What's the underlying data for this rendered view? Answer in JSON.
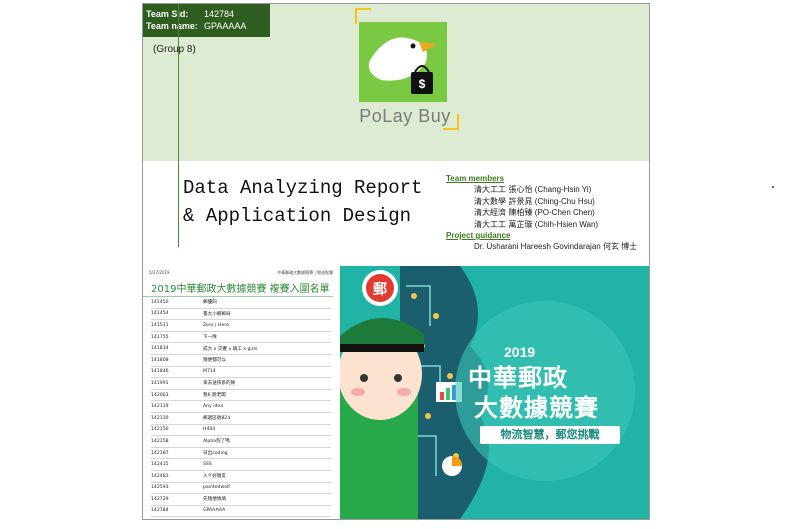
{
  "team": {
    "sid_label": "Team Sid:",
    "sid_value": "142784",
    "name_label": "Team name:",
    "name_value": "GPAAAAA",
    "group": "(Group 8)"
  },
  "brand": {
    "name": "PoLay Buy",
    "bag_symbol": "$"
  },
  "report": {
    "title_line1": "Data Analyzing Report",
    "title_line2": "& Application Design"
  },
  "members": {
    "heading": "Team members",
    "list": [
      {
        "cn": "清大工工  張心怡",
        "en": "(Chang-Hsin Yi)"
      },
      {
        "cn": "清大數學  許景晁",
        "en": "(Ching-Chu Hsu)"
      },
      {
        "cn": "清大經濟  陳柏臻",
        "en": "(PO-Chen Chen)"
      },
      {
        "cn": "清大工工  萬芷璇",
        "en": "(Chih-Hsien Wan)"
      }
    ],
    "guidance_heading": "Project guidance",
    "guidance": "Dr. Usharani Hareesh Govindarajan 何玄  博士"
  },
  "doc": {
    "date": "5/27/2019",
    "header_right": "中華郵政大數據競賽 | 物流智慧",
    "title": "2019中華郵政大數據競賽 複賽入圍名單",
    "rows": [
      [
        "141450",
        "郵優四"
      ],
      [
        "141454",
        "臺大小鄉郵局"
      ],
      [
        "141511",
        "Zero | Hero"
      ],
      [
        "141755",
        "下一隊"
      ],
      [
        "141834",
        "成大 x 交響 x 碩工 x girls"
      ],
      [
        "141808",
        "隨便都可以"
      ],
      [
        "141846",
        "M714"
      ],
      [
        "141991",
        "來去送快系的隊"
      ],
      [
        "142063",
        "我6.跑老闆"
      ],
      [
        "142119",
        "Any idea"
      ],
      [
        "142130",
        "郵遞區號824"
      ],
      [
        "142150",
        "H444"
      ],
      [
        "142158",
        "Alpha狗了嗎"
      ],
      [
        "142187",
        "日出coding"
      ],
      [
        "142415",
        "SSS"
      ],
      [
        "142483",
        "入ㄔ好朋友"
      ],
      [
        "142593",
        "paintedwolf"
      ],
      [
        "142729",
        "先隨便填填"
      ],
      [
        "142784",
        "GPAAAAA"
      ]
    ]
  },
  "poster": {
    "year": "2019",
    "line1": "中華郵政",
    "line2": "大數據競賽",
    "subtitle": "物流智慧，郵您挑戰",
    "logo_char": "郵"
  },
  "colors": {
    "dark_green": "#2f5c1f",
    "light_green": "#dcebd2",
    "teal": "#22b3a7",
    "accent_green": "#3b7a1f"
  }
}
